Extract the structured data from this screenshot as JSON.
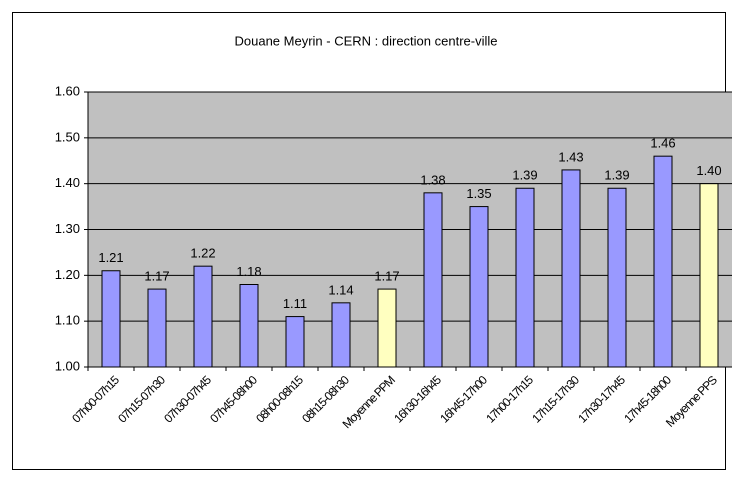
{
  "chart_data": {
    "type": "bar",
    "title": "Douane Meyrin - CERN : direction centre-ville",
    "categories": [
      "07h00-07h15",
      "07h15-07h30",
      "07h30-07h45",
      "07h45-08h00",
      "08h00-08h15",
      "08h15-08h30",
      "Moyenne PPM",
      "16h30-16h45",
      "16h45-17h00",
      "17h00-17h15",
      "17h15-17h30",
      "17h30-17h45",
      "17h45-18h00",
      "Moyenne PPS"
    ],
    "values": [
      1.21,
      1.17,
      1.22,
      1.18,
      1.11,
      1.14,
      1.17,
      1.38,
      1.35,
      1.39,
      1.43,
      1.39,
      1.46,
      1.4
    ],
    "value_labels": [
      "1.21",
      "1.17",
      "1.22",
      "1.18",
      "1.11",
      "1.14",
      "1.17",
      "1.38",
      "1.35",
      "1.39",
      "1.43",
      "1.39",
      "1.46",
      "1.40"
    ],
    "colors": [
      "#9999ff",
      "#9999ff",
      "#9999ff",
      "#9999ff",
      "#9999ff",
      "#9999ff",
      "#ffffc0",
      "#9999ff",
      "#9999ff",
      "#9999ff",
      "#9999ff",
      "#9999ff",
      "#9999ff",
      "#ffffc0"
    ],
    "ylim": [
      1.0,
      1.6
    ],
    "yticks": [
      {
        "value": 1.0,
        "label": "1.00"
      },
      {
        "value": 1.1,
        "label": "1.10"
      },
      {
        "value": 1.2,
        "label": "1.20"
      },
      {
        "value": 1.3,
        "label": "1.30"
      },
      {
        "value": 1.4,
        "label": "1.40"
      },
      {
        "value": 1.5,
        "label": "1.50"
      },
      {
        "value": 1.6,
        "label": "1.60"
      }
    ],
    "grid": true,
    "plot_background": "#c0c0c0"
  }
}
